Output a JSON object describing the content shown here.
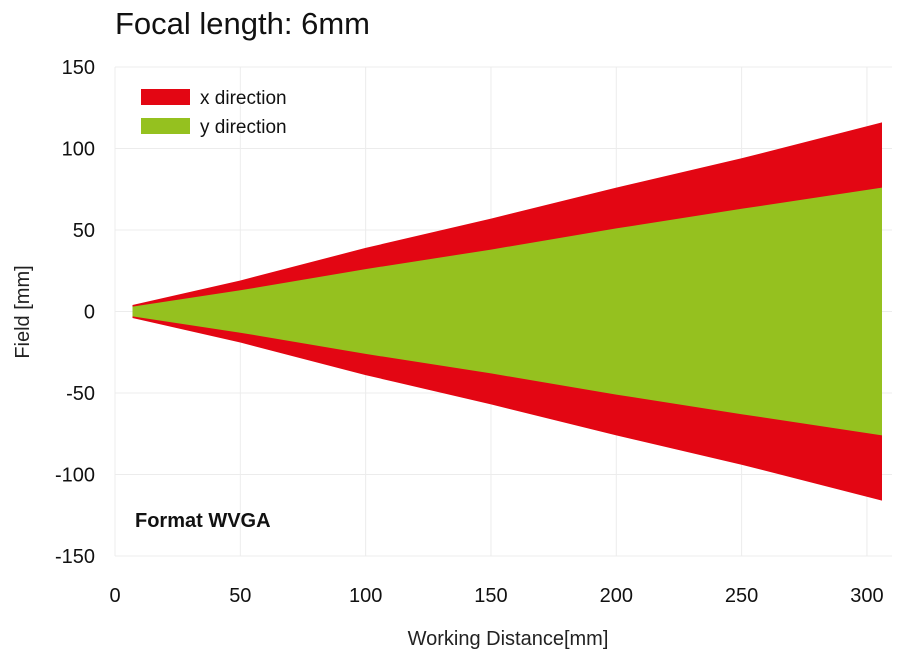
{
  "chart_data": {
    "type": "area",
    "title": "Focal length: 6mm",
    "xlabel": "Working Distance[mm]",
    "ylabel": "Field [mm]",
    "annotation": "Format WVGA",
    "xlim": [
      0,
      310
    ],
    "ylim": [
      -150,
      150
    ],
    "x_ticks": [
      0,
      50,
      100,
      150,
      200,
      250,
      300
    ],
    "y_ticks": [
      150,
      100,
      50,
      0,
      -50,
      -100,
      -150
    ],
    "grid": true,
    "legend_position": "top-left",
    "series": [
      {
        "name": "x direction",
        "color": "#e30613",
        "x": [
          7,
          50,
          100,
          150,
          200,
          250,
          306
        ],
        "upper": [
          4,
          19,
          39,
          57,
          76,
          94,
          116
        ],
        "lower": [
          -4,
          -19,
          -39,
          -57,
          -76,
          -94,
          -116
        ]
      },
      {
        "name": "y direction",
        "color": "#95c11f",
        "x": [
          7,
          50,
          100,
          150,
          200,
          250,
          306
        ],
        "upper": [
          3,
          13,
          26,
          38,
          51,
          63,
          76
        ],
        "lower": [
          -3,
          -13,
          -26,
          -38,
          -51,
          -63,
          -76
        ]
      }
    ]
  }
}
